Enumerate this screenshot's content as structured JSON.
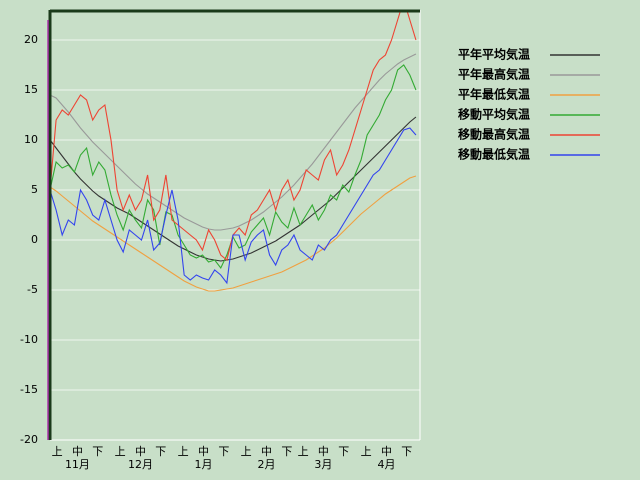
{
  "chart_data": {
    "type": "line",
    "x": [
      0,
      3,
      6,
      9,
      12,
      15,
      18,
      21,
      24,
      27,
      30,
      33,
      36,
      39,
      42,
      45,
      48,
      51,
      54,
      57,
      60,
      63,
      66,
      69,
      72,
      75,
      78,
      81,
      84,
      87,
      90,
      93,
      96,
      99,
      102,
      105,
      108,
      111,
      114,
      117,
      120,
      123,
      126,
      129,
      132,
      135,
      138,
      141,
      144,
      147,
      150,
      153,
      156,
      159,
      162,
      165,
      168,
      171,
      174,
      177,
      180
    ],
    "xlim": [
      0,
      182
    ],
    "xticks": [
      {
        "value": 3.5,
        "label": "上"
      },
      {
        "value": 13.5,
        "label": "中"
      },
      {
        "value": 23.5,
        "label": "下"
      },
      {
        "value": 34.5,
        "label": "上"
      },
      {
        "value": 44.5,
        "label": "中"
      },
      {
        "value": 54.5,
        "label": "下"
      },
      {
        "value": 65.5,
        "label": "上"
      },
      {
        "value": 75.5,
        "label": "中"
      },
      {
        "value": 85.5,
        "label": "下"
      },
      {
        "value": 96.5,
        "label": "上"
      },
      {
        "value": 106.5,
        "label": "中"
      },
      {
        "value": 116.5,
        "label": "下"
      },
      {
        "value": 124.5,
        "label": "上"
      },
      {
        "value": 134.5,
        "label": "中"
      },
      {
        "value": 144.5,
        "label": "下"
      },
      {
        "value": 155.5,
        "label": "上"
      },
      {
        "value": 165.5,
        "label": "中"
      },
      {
        "value": 175.5,
        "label": "下"
      }
    ],
    "month_labels": [
      {
        "value": 13.5,
        "label": "11月"
      },
      {
        "value": 44.5,
        "label": "12月"
      },
      {
        "value": 75.5,
        "label": "1月"
      },
      {
        "value": 106.5,
        "label": "2月"
      },
      {
        "value": 134.5,
        "label": "3月"
      },
      {
        "value": 165.5,
        "label": "4月"
      }
    ],
    "ylim": [
      -20,
      23
    ],
    "yticks": [
      -20,
      -15,
      -10,
      -5,
      0,
      5,
      10,
      15,
      20
    ],
    "grid": true,
    "legend": "right",
    "series": [
      {
        "name": "平年平均気温",
        "color": "#333333",
        "values": [
          10,
          9.2,
          8.4,
          7.6,
          6.8,
          6.1,
          5.5,
          4.9,
          4.4,
          4.0,
          3.6,
          3.2,
          2.9,
          2.6,
          2.2,
          1.8,
          1.4,
          1.0,
          0.6,
          0.2,
          -0.2,
          -0.6,
          -0.9,
          -1.2,
          -1.5,
          -1.7,
          -1.9,
          -2.0,
          -2.1,
          -2.0,
          -1.9,
          -1.7,
          -1.5,
          -1.3,
          -1.0,
          -0.7,
          -0.4,
          -0.1,
          0.3,
          0.7,
          1.1,
          1.5,
          2.0,
          2.5,
          3.0,
          3.5,
          4.0,
          4.6,
          5.2,
          5.8,
          6.4,
          7.0,
          7.6,
          8.2,
          8.8,
          9.4,
          10.0,
          10.6,
          11.2,
          11.8,
          12.3
        ]
      },
      {
        "name": "平年最高気温",
        "color": "#999999",
        "values": [
          14.5,
          14.2,
          13.5,
          12.8,
          12.0,
          11.2,
          10.5,
          9.8,
          9.2,
          8.6,
          8.0,
          7.4,
          6.8,
          6.2,
          5.6,
          5.1,
          4.6,
          4.2,
          3.8,
          3.4,
          3.0,
          2.6,
          2.2,
          1.9,
          1.6,
          1.3,
          1.1,
          1.0,
          1.0,
          1.1,
          1.2,
          1.4,
          1.7,
          2.0,
          2.4,
          2.8,
          3.3,
          3.8,
          4.3,
          4.9,
          5.5,
          6.2,
          6.9,
          7.6,
          8.4,
          9.2,
          10.0,
          10.8,
          11.6,
          12.4,
          13.2,
          13.9,
          14.6,
          15.3,
          16.0,
          16.6,
          17.1,
          17.6,
          18.0,
          18.3,
          18.6
        ]
      },
      {
        "name": "平年最低気温",
        "color": "#f0a040",
        "values": [
          5.3,
          4.9,
          4.4,
          3.9,
          3.4,
          2.9,
          2.4,
          1.9,
          1.5,
          1.1,
          0.7,
          0.3,
          -0.1,
          -0.5,
          -0.9,
          -1.3,
          -1.7,
          -2.1,
          -2.5,
          -2.9,
          -3.3,
          -3.7,
          -4.1,
          -4.4,
          -4.7,
          -4.9,
          -5.1,
          -5.1,
          -5.0,
          -4.9,
          -4.8,
          -4.6,
          -4.4,
          -4.2,
          -4.0,
          -3.8,
          -3.6,
          -3.4,
          -3.2,
          -2.9,
          -2.6,
          -2.3,
          -2.0,
          -1.6,
          -1.2,
          -0.8,
          -0.3,
          0.2,
          0.8,
          1.4,
          2.0,
          2.6,
          3.1,
          3.6,
          4.1,
          4.6,
          5.0,
          5.4,
          5.8,
          6.2,
          6.4
        ]
      },
      {
        "name": "移動平均気温",
        "color": "#33aa33",
        "values": [
          5,
          7.8,
          7.2,
          7.5,
          6.8,
          8.5,
          9.2,
          6.5,
          7.8,
          7.0,
          4.5,
          2.5,
          1.0,
          3.0,
          2.0,
          1.2,
          4.0,
          3.0,
          -0.5,
          2.8,
          2.5,
          0.5,
          -0.5,
          -1.5,
          -1.8,
          -1.5,
          -2.2,
          -2.0,
          -2.8,
          -1.5,
          0.3,
          -0.8,
          -0.5,
          0.8,
          1.5,
          2.2,
          0.5,
          2.8,
          1.8,
          1.2,
          3.2,
          1.5,
          2.5,
          3.5,
          2.0,
          3.0,
          4.5,
          4.0,
          5.5,
          4.8,
          6.5,
          8.0,
          10.5,
          11.5,
          12.5,
          14.0,
          15.0,
          17.0,
          17.5,
          16.5,
          15.0
        ]
      },
      {
        "name": "移動最高気温",
        "color": "#ee4433",
        "values": [
          5,
          12,
          13,
          12.5,
          13.5,
          14.5,
          14,
          12,
          13,
          13.5,
          10,
          5,
          3,
          4.5,
          3,
          4,
          6.5,
          2,
          3,
          6.5,
          2,
          1.5,
          1,
          0.5,
          0,
          -1,
          1,
          0,
          -1.5,
          -2,
          0.5,
          1.2,
          0.5,
          2.5,
          3,
          4,
          5,
          3,
          5,
          6,
          4,
          5,
          7,
          6.5,
          6,
          8,
          9,
          6.5,
          7.5,
          9,
          11,
          13,
          15,
          17,
          18,
          18.5,
          20,
          22,
          24,
          22,
          20
        ]
      },
      {
        "name": "移動最低気温",
        "color": "#3344ee",
        "values": [
          5,
          3,
          0.5,
          2,
          1.5,
          5,
          4,
          2.5,
          2,
          4,
          2,
          0,
          -1.2,
          1,
          0.5,
          0,
          2,
          -1,
          -0.3,
          2.5,
          5,
          2,
          -3.5,
          -4,
          -3.5,
          -3.8,
          -4,
          -3,
          -3.5,
          -4.3,
          0.5,
          0.5,
          -2,
          -0.2,
          0.5,
          1,
          -1.5,
          -2.5,
          -1,
          -0.5,
          0.5,
          -1,
          -1.5,
          -2,
          -0.5,
          -1,
          0,
          0.5,
          1.5,
          2.5,
          3.5,
          4.5,
          5.5,
          6.5,
          7,
          8,
          9,
          10,
          11,
          11.2,
          10.5
        ]
      }
    ]
  }
}
